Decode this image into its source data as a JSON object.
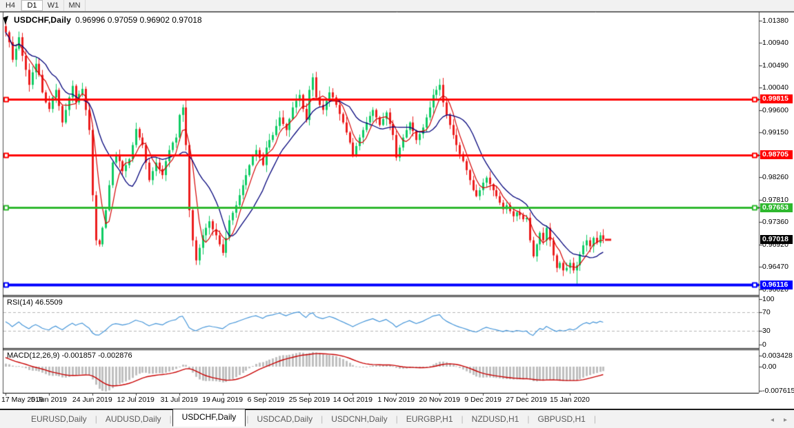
{
  "toolbar": {
    "timeframes": [
      {
        "label": "H4",
        "active": false
      },
      {
        "label": "D1",
        "active": true
      },
      {
        "label": "W1",
        "active": false
      },
      {
        "label": "MN",
        "active": false
      }
    ]
  },
  "chart": {
    "title": "USDCHF,Daily",
    "ohlc_text": "0.96996 0.97059 0.96902 0.97018",
    "current_price": "0.97018",
    "price_axis_labels": [
      "1.01380",
      "1.00940",
      "1.00490",
      "1.00040",
      "0.99600",
      "0.99150",
      "0.98260",
      "0.97810",
      "0.97360",
      "0.96920",
      "0.96470",
      "0.96020"
    ],
    "level_labels": [
      {
        "text": "0.99815",
        "color": "#ff0000"
      },
      {
        "text": "0.98705",
        "color": "#ff0000"
      },
      {
        "text": "0.97653",
        "color": "#2eb82e"
      },
      {
        "text": "0.96116",
        "color": "#0000ff"
      }
    ],
    "date_labels": [
      {
        "text": "17 May 2019",
        "i": 0
      },
      {
        "text": "5 Jun 2019",
        "i": 13
      },
      {
        "text": "24 Jun 2019",
        "i": 26
      },
      {
        "text": "12 Jul 2019",
        "i": 39
      },
      {
        "text": "31 Jul 2019",
        "i": 52
      },
      {
        "text": "19 Aug 2019",
        "i": 65
      },
      {
        "text": "6 Sep 2019",
        "i": 78
      },
      {
        "text": "25 Sep 2019",
        "i": 91
      },
      {
        "text": "14 Oct 2019",
        "i": 104
      },
      {
        "text": "1 Nov 2019",
        "i": 117
      },
      {
        "text": "20 Nov 2019",
        "i": 130
      },
      {
        "text": "9 Dec 2019",
        "i": 143
      },
      {
        "text": "27 Dec 2019",
        "i": 156
      },
      {
        "text": "15 Jan 2020",
        "i": 169
      }
    ]
  },
  "indicators": {
    "rsi": {
      "label": "RSI(14) 46.5509",
      "value": 46.5509,
      "axis_labels": [
        {
          "text": "100",
          "v": 100
        },
        {
          "text": "70",
          "v": 70
        },
        {
          "text": "30",
          "v": 30
        },
        {
          "text": "0",
          "v": 0
        }
      ],
      "dashed_levels": [
        70,
        30
      ]
    },
    "macd": {
      "label": "MACD(12,26,9) -0.001857 -0.002876",
      "main": -0.001857,
      "signal": -0.002876,
      "axis_labels": [
        {
          "text": "0.003428",
          "v": 0.003428
        },
        {
          "text": "0.00",
          "v": 0
        },
        {
          "text": "-0.007615",
          "v": -0.007615
        }
      ]
    }
  },
  "tabs": {
    "items": [
      {
        "label": "EURUSD,Daily",
        "active": false
      },
      {
        "label": "AUDUSD,Daily",
        "active": false
      },
      {
        "label": "USDCHF,Daily",
        "active": true
      },
      {
        "label": "USDCAD,Daily",
        "active": false
      },
      {
        "label": "USDCNH,Daily",
        "active": false
      },
      {
        "label": "EURGBP,H1",
        "active": false
      },
      {
        "label": "NZDUSD,H1",
        "active": false
      },
      {
        "label": "GBPUSD,H1",
        "active": false
      }
    ],
    "scroll_left_icon": "◂",
    "scroll_right_icon": "▸"
  },
  "colors": {
    "bull": "#0ecb63",
    "bear": "#ec1c1c",
    "ma_fast": "#d40000",
    "ma_slow": "#00007a",
    "rsi_line": "#4394d8",
    "macd_hist": "#bfbfbf",
    "macd_signal": "#c80000",
    "resistance": "#ff0000",
    "support": "#2eb82e",
    "floor": "#0000ff",
    "current": "#000000",
    "axis_tick": "#333333",
    "panel_border": "#4d4d4d"
  },
  "chart_data": {
    "type": "candlestick",
    "symbol": "USDCHF",
    "timeframe": "Daily",
    "current_ohlc": {
      "open": 0.96996,
      "high": 0.97059,
      "low": 0.96902,
      "close": 0.97018
    },
    "y_axis": {
      "top": 1.01517,
      "bottom": 0.95924
    },
    "x_axis_dates": [
      "17 May 2019",
      "5 Jun 2019",
      "24 Jun 2019",
      "12 Jul 2019",
      "31 Jul 2019",
      "19 Aug 2019",
      "6 Sep 2019",
      "25 Sep 2019",
      "14 Oct 2019",
      "1 Nov 2019",
      "20 Nov 2019",
      "9 Dec 2019",
      "27 Dec 2019",
      "15 Jan 2020"
    ],
    "horizontal_levels": [
      {
        "price": 0.99815,
        "role": "resistance"
      },
      {
        "price": 0.98705,
        "role": "resistance"
      },
      {
        "price": 0.97653,
        "role": "support"
      },
      {
        "price": 0.96116,
        "role": "support-floor"
      }
    ],
    "rsi_value": 46.5509,
    "rsi_overbought": 70,
    "rsi_oversold": 30,
    "macd_values": {
      "main": -0.001857,
      "signal": -0.002876
    },
    "closes": [
      1.0115,
      1.0095,
      1.006,
      1.0082,
      1.0105,
      1.0068,
      1.004,
      1.001,
      1.0035,
      1.0052,
      1.003,
      0.9995,
      0.9975,
      0.9962,
      0.9985,
      1.0,
      0.9968,
      0.9935,
      0.996,
      0.9985,
      1.0008,
      0.9975,
      0.9992,
      1.0002,
      0.996,
      0.992,
      0.979,
      0.97,
      0.9692,
      0.9725,
      0.976,
      0.981,
      0.9855,
      0.987,
      0.9858,
      0.9838,
      0.985,
      0.9862,
      0.989,
      0.9922,
      0.9905,
      0.989,
      0.9855,
      0.982,
      0.9838,
      0.9855,
      0.9842,
      0.983,
      0.9858,
      0.988,
      0.9895,
      0.9905,
      0.995,
      0.9965,
      0.989,
      0.976,
      0.97,
      0.966,
      0.9685,
      0.971,
      0.9725,
      0.9738,
      0.9722,
      0.971,
      0.9692,
      0.9675,
      0.9705,
      0.974,
      0.9755,
      0.977,
      0.979,
      0.981,
      0.983,
      0.985,
      0.9868,
      0.988,
      0.9865,
      0.985,
      0.9885,
      0.99,
      0.991,
      0.9928,
      0.9945,
      0.9932,
      0.992,
      0.9942,
      0.9965,
      0.9978,
      0.999,
      0.9962,
      0.994,
      1.0,
      1.0025,
      0.9985,
      0.997,
      0.996,
      0.9978,
      0.9995,
      0.9985,
      0.997,
      0.9952,
      0.9935,
      0.9915,
      0.9895,
      0.987,
      0.9888,
      0.9905,
      0.992,
      0.9935,
      0.9948,
      0.996,
      0.9945,
      0.993,
      0.9942,
      0.9955,
      0.9932,
      0.991,
      0.9865,
      0.9885,
      0.9905,
      0.992,
      0.9935,
      0.9918,
      0.99,
      0.9912,
      0.9925,
      0.9945,
      0.9965,
      0.999,
      1.0,
      1.001,
      0.9975,
      0.995,
      0.993,
      0.991,
      0.989,
      0.9872,
      0.9858,
      0.984,
      0.982,
      0.98,
      0.9788,
      0.98,
      0.9815,
      0.9825,
      0.9812,
      0.98,
      0.9788,
      0.9775,
      0.9762,
      0.977,
      0.9758,
      0.9748,
      0.9756,
      0.975,
      0.9742,
      0.9745,
      0.97,
      0.9668,
      0.9692,
      0.9715,
      0.97,
      0.9725,
      0.97,
      0.967,
      0.9645,
      0.9655,
      0.964,
      0.9645,
      0.9655,
      0.964,
      0.965,
      0.9672,
      0.969,
      0.97,
      0.9688,
      0.9705,
      0.9695,
      0.971,
      0.9702
    ],
    "wick_overrides": {
      "27": {
        "low": 0.969
      },
      "92": {
        "high": 1.0033
      },
      "171": {
        "low": 0.9612
      }
    }
  }
}
